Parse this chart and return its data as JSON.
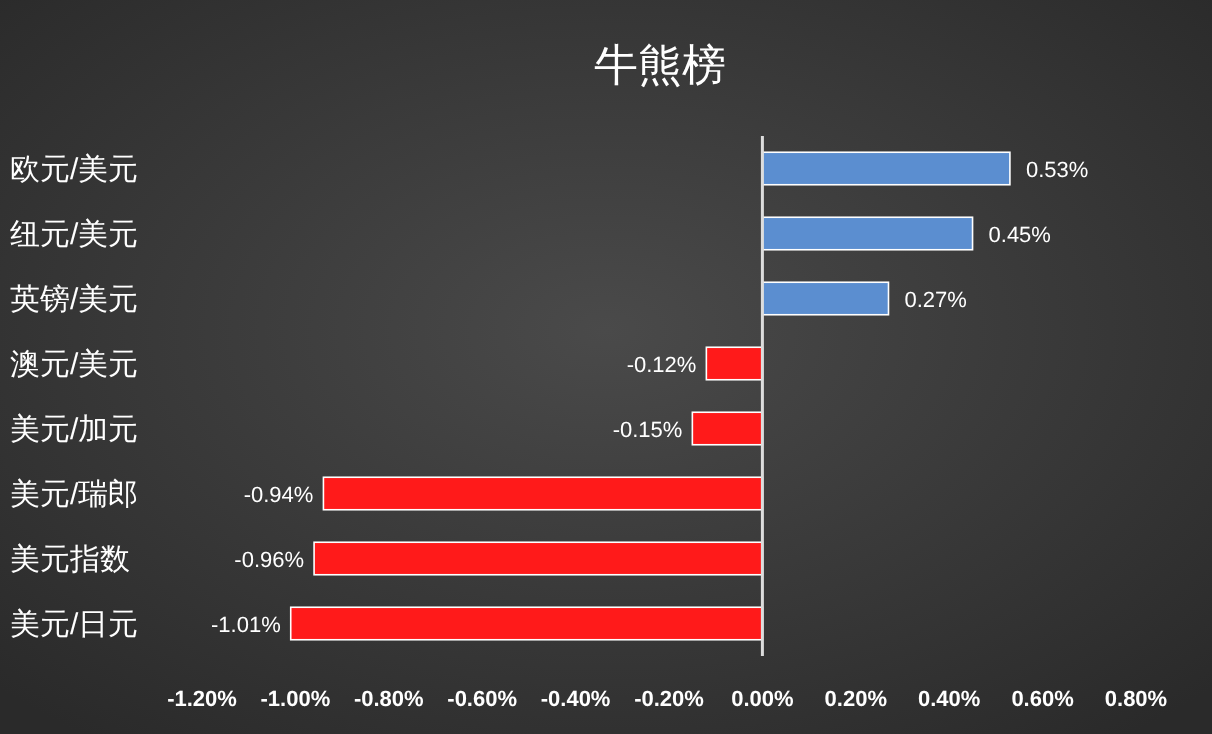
{
  "chart_data": {
    "type": "bar",
    "orientation": "horizontal",
    "title": "牛熊榜",
    "categories": [
      "欧元/美元",
      "纽元/美元",
      "英镑/美元",
      "澳元/美元",
      "美元/加元",
      "美元/瑞郎",
      "美元指数",
      "美元/日元"
    ],
    "values": [
      0.53,
      0.45,
      0.27,
      -0.12,
      -0.15,
      -0.94,
      -0.96,
      -1.01
    ],
    "value_labels": [
      "0.53%",
      "0.45%",
      "0.27%",
      "-0.12%",
      "-0.15%",
      "-0.94%",
      "-0.96%",
      "-1.01%"
    ],
    "colors": [
      "#5b8ed0",
      "#5b8ed0",
      "#5b8ed0",
      "#ff1a1a",
      "#ff1a1a",
      "#ff1a1a",
      "#ff1a1a",
      "#ff1a1a"
    ],
    "xlim": [
      -1.2,
      0.8
    ],
    "xticks": [
      {
        "value": -1.2,
        "label": "-1.20%"
      },
      {
        "value": -1.0,
        "label": "-1.00%"
      },
      {
        "value": -0.8,
        "label": "-0.80%"
      },
      {
        "value": -0.6,
        "label": "-0.60%"
      },
      {
        "value": -0.4,
        "label": "-0.40%"
      },
      {
        "value": -0.2,
        "label": "-0.20%"
      },
      {
        "value": 0,
        "label": "0.00%"
      },
      {
        "value": 0.2,
        "label": "0.20%"
      },
      {
        "value": 0.4,
        "label": "0.40%"
      },
      {
        "value": 0.6,
        "label": "0.60%"
      },
      {
        "value": 0.8,
        "label": "0.80%"
      }
    ],
    "tick_labels": "x"
  }
}
